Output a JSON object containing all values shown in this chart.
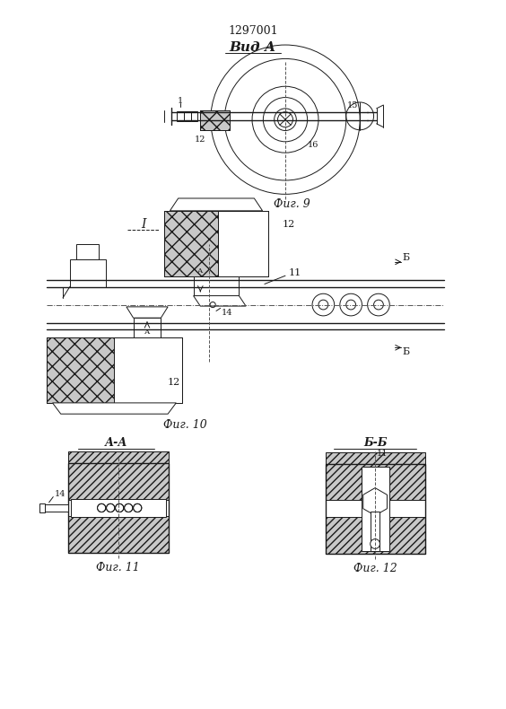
{
  "title": "1297001",
  "fig9_label": "Вид А",
  "fig9_caption": "Фиг. 9",
  "fig10_caption": "Фиг. 10",
  "fig11_caption": "Фиг. 11",
  "fig12_caption": "Фиг. 12",
  "section_I_label": "I",
  "section_AA_label": "А-А",
  "section_BB_label": "Б-Б",
  "bg_color": "#ffffff",
  "line_color": "#1a1a1a"
}
